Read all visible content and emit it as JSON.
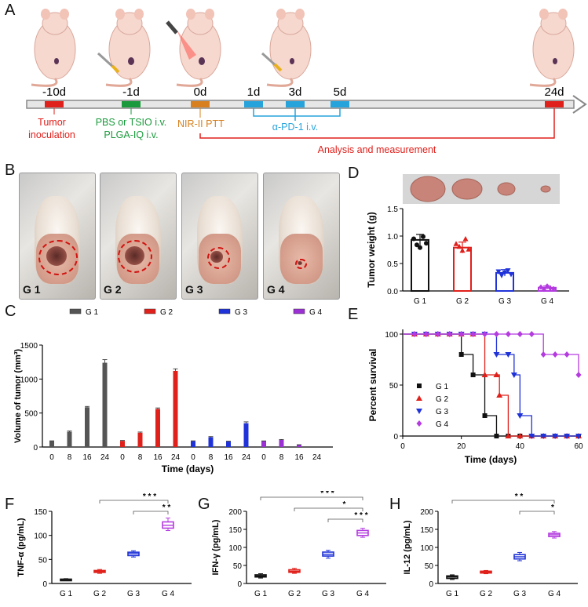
{
  "panels": {
    "A": "A",
    "B": "B",
    "C": "C",
    "D": "D",
    "E": "E",
    "F": "F",
    "G": "G",
    "H": "H"
  },
  "timeline": {
    "days": [
      "-10d",
      "-1d",
      "0d",
      "1d",
      "3d",
      "5d",
      "24d"
    ],
    "tumor_inoculation": [
      "Tumor",
      "inoculation"
    ],
    "injection_line1": "PBS or TSIO i.v.",
    "injection_line2": "PLGA-IQ i.v.",
    "ptt": "NIR-II PTT",
    "antibody": "α-PD-1 i.v.",
    "analysis": "Analysis and measurement",
    "colors": {
      "red": "#e0201b",
      "green": "#1a9a3c",
      "orange": "#d8801f",
      "blue": "#27a3dc"
    }
  },
  "photos": {
    "labels": [
      "G 1",
      "G 2",
      "G 3",
      "G 4"
    ]
  },
  "chart_data": [
    {
      "id": "C",
      "type": "bar",
      "ylabel": "Volume of tumor (mm³)",
      "xlabel": "Time (days)",
      "ylim": [
        0,
        1500
      ],
      "yticks": [
        0,
        500,
        1000,
        1500
      ],
      "x": [
        0,
        8,
        16,
        24
      ],
      "series": [
        {
          "name": "G 1",
          "color": "#555555",
          "values": [
            85,
            225,
            585,
            1240
          ],
          "err": [
            6,
            10,
            12,
            45
          ]
        },
        {
          "name": "G 2",
          "color": "#e0201b",
          "values": [
            90,
            210,
            560,
            1120
          ],
          "err": [
            6,
            10,
            15,
            30
          ]
        },
        {
          "name": "G 3",
          "color": "#2033d8",
          "values": [
            85,
            145,
            80,
            350
          ],
          "err": [
            6,
            8,
            6,
            20
          ]
        },
        {
          "name": "G 4",
          "color": "#9b31d4",
          "values": [
            85,
            105,
            30,
            0
          ],
          "err": [
            5,
            6,
            4,
            0
          ]
        }
      ]
    },
    {
      "id": "D",
      "type": "bar",
      "ylabel": "Tumor weight (g)",
      "categories": [
        "G 1",
        "G 2",
        "G 3",
        "G 4"
      ],
      "colors": [
        "#111111",
        "#e0201b",
        "#2033d8",
        "#b43be0"
      ],
      "values": [
        0.93,
        0.79,
        0.33,
        0.06
      ],
      "err": [
        0.1,
        0.1,
        0.06,
        0.03
      ],
      "points": [
        [
          0.95,
          0.84,
          0.79,
          0.99,
          0.87
        ],
        [
          0.86,
          0.81,
          0.74,
          0.95,
          0.76
        ],
        [
          0.35,
          0.28,
          0.33,
          0.37,
          0.3
        ],
        [
          0.07,
          0.03,
          0.09,
          0.05,
          0.04
        ]
      ],
      "ylim": [
        0,
        1.5
      ],
      "yticks": [
        "0.0",
        "0.5",
        "1.0",
        "1.5"
      ]
    },
    {
      "id": "E",
      "type": "line",
      "ylabel": "Percent survival",
      "xlabel": "Time (days)",
      "xlim": [
        0,
        60
      ],
      "ylim": [
        0,
        100
      ],
      "xticks": [
        0,
        20,
        40,
        60
      ],
      "yticks": [
        0,
        50,
        100
      ],
      "series": [
        {
          "name": "G 1",
          "color": "#111111",
          "marker": "square",
          "points": [
            [
              0,
              100
            ],
            [
              20,
              80
            ],
            [
              24,
              60
            ],
            [
              28,
              20
            ],
            [
              32,
              0
            ],
            [
              60,
              0
            ]
          ]
        },
        {
          "name": "G 2",
          "color": "#e0201b",
          "marker": "triangle-up",
          "points": [
            [
              0,
              100
            ],
            [
              28,
              60
            ],
            [
              33,
              40
            ],
            [
              36,
              0
            ],
            [
              60,
              0
            ]
          ]
        },
        {
          "name": "G 3",
          "color": "#2033d8",
          "marker": "triangle-down",
          "points": [
            [
              0,
              100
            ],
            [
              32,
              80
            ],
            [
              38,
              60
            ],
            [
              40,
              20
            ],
            [
              44,
              0
            ],
            [
              60,
              0
            ]
          ]
        },
        {
          "name": "G 4",
          "color": "#b43be0",
          "marker": "diamond",
          "points": [
            [
              0,
              100
            ],
            [
              44,
              100
            ],
            [
              48,
              80
            ],
            [
              56,
              80
            ],
            [
              60,
              60
            ]
          ]
        }
      ]
    },
    {
      "id": "F",
      "type": "box",
      "ylabel": "TNF-α (pg/mL)",
      "categories": [
        "G 1",
        "G 2",
        "G 3",
        "G 4"
      ],
      "colors": [
        "#111111",
        "#e0201b",
        "#2033d8",
        "#b43be0"
      ],
      "boxes": [
        [
          6,
          7,
          8,
          9,
          10
        ],
        [
          21,
          23,
          25,
          27,
          29
        ],
        [
          55,
          58,
          62,
          65,
          68
        ],
        [
          110,
          115,
          121,
          128,
          136
        ]
      ],
      "ylim": [
        0,
        150
      ],
      "yticks": [
        0,
        50,
        100,
        150
      ],
      "sig": [
        {
          "from": 1,
          "to": 3,
          "label": "* * *"
        },
        {
          "from": 2,
          "to": 3,
          "label": "* *"
        }
      ]
    },
    {
      "id": "G",
      "type": "box",
      "ylabel": "IFN-γ (pg/mL)",
      "categories": [
        "G 1",
        "G 2",
        "G 3",
        "G 4"
      ],
      "colors": [
        "#111111",
        "#e0201b",
        "#2033d8",
        "#b43be0"
      ],
      "boxes": [
        [
          15,
          18,
          21,
          24,
          27
        ],
        [
          28,
          31,
          34,
          38,
          42
        ],
        [
          70,
          76,
          81,
          87,
          92
        ],
        [
          128,
          133,
          140,
          147,
          153
        ]
      ],
      "ylim": [
        0,
        200
      ],
      "yticks": [
        0,
        50,
        100,
        150,
        200
      ],
      "sig": [
        {
          "from": 0,
          "to": 3,
          "label": "* * *"
        },
        {
          "from": 1,
          "to": 3,
          "label": "*"
        },
        {
          "from": 2,
          "to": 3,
          "label": "* * *"
        }
      ]
    },
    {
      "id": "H",
      "type": "box",
      "ylabel": "IL-12 (pg/mL)",
      "categories": [
        "G 1",
        "G 2",
        "G 3",
        "G 4"
      ],
      "colors": [
        "#111111",
        "#e0201b",
        "#2033d8",
        "#b43be0"
      ],
      "boxes": [
        [
          11,
          14,
          18,
          21,
          24
        ],
        [
          27,
          29,
          32,
          34,
          36
        ],
        [
          63,
          68,
          74,
          80,
          86
        ],
        [
          126,
          130,
          135,
          139,
          144
        ]
      ],
      "ylim": [
        0,
        200
      ],
      "yticks": [
        0,
        50,
        100,
        150,
        200
      ],
      "sig": [
        {
          "from": 0,
          "to": 3,
          "label": "* *"
        },
        {
          "from": 2,
          "to": 3,
          "label": "*"
        }
      ]
    }
  ]
}
